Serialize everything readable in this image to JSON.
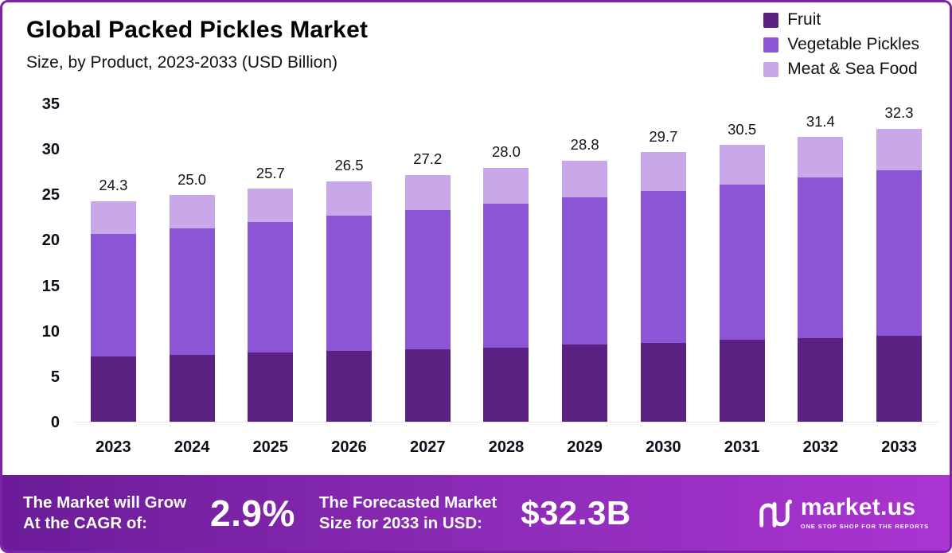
{
  "title": "Global Packed Pickles Market",
  "subtitle": "Size, by Product, 2023-2033 (USD Billion)",
  "chart_data": {
    "type": "bar",
    "stacked": true,
    "title": "Global Packed Pickles Market Size, by Product, 2023-2033 (USD Billion)",
    "categories": [
      "2023",
      "2024",
      "2025",
      "2026",
      "2027",
      "2028",
      "2029",
      "2030",
      "2031",
      "2032",
      "2033"
    ],
    "series": [
      {
        "name": "Fruit",
        "color": "#5a2183",
        "values": [
          7.2,
          7.4,
          7.6,
          7.8,
          8.0,
          8.2,
          8.5,
          8.7,
          9.0,
          9.2,
          9.5
        ]
      },
      {
        "name": "Vegetable Pickles",
        "color": "#8b55d6",
        "values": [
          13.5,
          13.9,
          14.4,
          14.9,
          15.3,
          15.8,
          16.2,
          16.7,
          17.1,
          17.7,
          18.2
        ]
      },
      {
        "name": "Meat & Sea Food",
        "color": "#c8a8e9",
        "values": [
          3.6,
          3.7,
          3.7,
          3.8,
          3.9,
          4.0,
          4.1,
          4.3,
          4.4,
          4.5,
          4.6
        ]
      }
    ],
    "totals": [
      24.3,
      25.0,
      25.7,
      26.5,
      27.2,
      28.0,
      28.8,
      29.7,
      30.5,
      31.4,
      32.3
    ],
    "xlabel": "",
    "ylabel": "",
    "ylim": [
      0,
      35
    ],
    "yticks": [
      0,
      5,
      10,
      15,
      20,
      25,
      30,
      35
    ],
    "grid": false,
    "legend_position": "top-right"
  },
  "banner": {
    "cagr_label_line1": "The Market will Grow",
    "cagr_label_line2": "At the CAGR of:",
    "cagr_value": "2.9%",
    "forecast_label_line1": "The Forecasted Market",
    "forecast_label_line2": "Size for 2033 in USD:",
    "forecast_value": "$32.3B",
    "logo_text": "market.us",
    "logo_tagline": "One Stop Shop For The Reports",
    "gradient_left": "#6b1c97",
    "gradient_right": "#ab34d2"
  }
}
